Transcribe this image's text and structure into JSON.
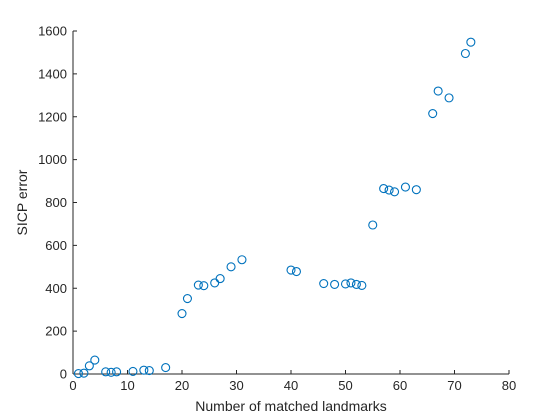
{
  "chart_data": {
    "type": "scatter",
    "title": "",
    "xlabel": "Number of matched landmarks",
    "ylabel": "SICP error",
    "xlim": [
      0,
      80
    ],
    "ylim": [
      0,
      1600
    ],
    "xticks": [
      0,
      10,
      20,
      30,
      40,
      50,
      60,
      70,
      80
    ],
    "yticks": [
      0,
      200,
      400,
      600,
      800,
      1000,
      1200,
      1400,
      1600
    ],
    "grid": false,
    "legend": "none",
    "marker": "circle-open",
    "color": "#0072BD",
    "series": [
      {
        "points": [
          [
            1,
            2
          ],
          [
            2,
            4
          ],
          [
            3,
            38
          ],
          [
            4,
            65
          ],
          [
            6,
            10
          ],
          [
            7,
            8
          ],
          [
            8,
            10
          ],
          [
            11,
            12
          ],
          [
            13,
            18
          ],
          [
            14,
            16
          ],
          [
            17,
            30
          ],
          [
            20,
            282
          ],
          [
            21,
            352
          ],
          [
            23,
            415
          ],
          [
            24,
            412
          ],
          [
            26,
            425
          ],
          [
            27,
            445
          ],
          [
            29,
            500
          ],
          [
            31,
            533
          ],
          [
            40,
            485
          ],
          [
            41,
            478
          ],
          [
            46,
            422
          ],
          [
            48,
            418
          ],
          [
            50,
            420
          ],
          [
            51,
            425
          ],
          [
            52,
            418
          ],
          [
            53,
            413
          ],
          [
            55,
            695
          ],
          [
            57,
            865
          ],
          [
            58,
            858
          ],
          [
            59,
            850
          ],
          [
            61,
            872
          ],
          [
            63,
            860
          ],
          [
            66,
            1215
          ],
          [
            67,
            1320
          ],
          [
            69,
            1288
          ],
          [
            72,
            1495
          ],
          [
            73,
            1548
          ]
        ]
      }
    ]
  }
}
